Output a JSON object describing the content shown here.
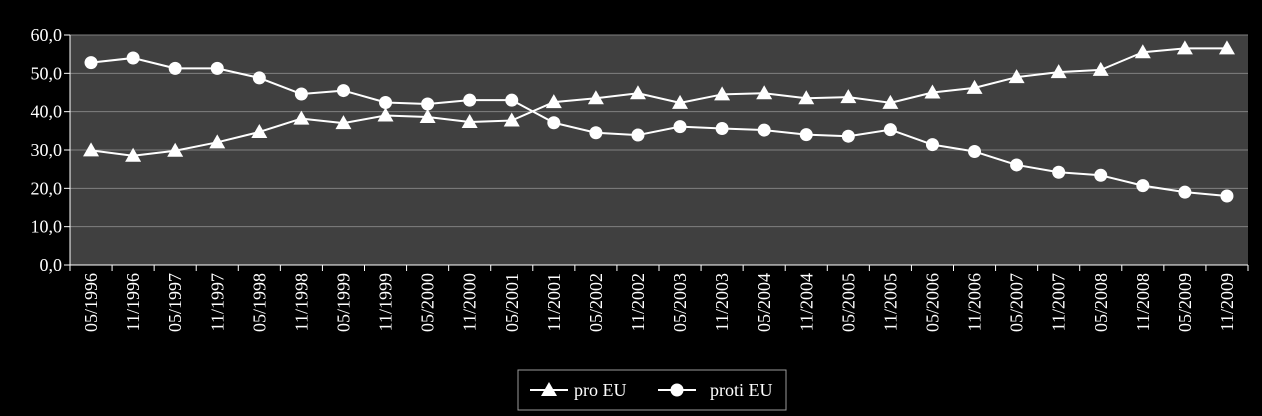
{
  "chart_data": {
    "type": "line",
    "categories": [
      "05/1996",
      "11/1996",
      "05/1997",
      "11/1997",
      "05/1998",
      "11/1998",
      "05/1999",
      "11/1999",
      "05/2000",
      "11/2000",
      "05/2001",
      "11/2001",
      "05/2002",
      "11/2002",
      "05/2003",
      "11/2003",
      "05/2004",
      "11/2004",
      "05/2005",
      "11/2005",
      "05/2006",
      "11/2006",
      "05/2007",
      "11/2007",
      "05/2008",
      "11/2008",
      "05/2009",
      "11/2009"
    ],
    "series": [
      {
        "name": "pro EU",
        "marker": "triangle",
        "values": [
          29.9,
          28.5,
          29.8,
          32.0,
          34.7,
          38.2,
          37.0,
          39.0,
          38.6,
          37.3,
          37.7,
          42.5,
          43.5,
          44.8,
          42.3,
          44.5,
          44.8,
          43.5,
          43.8,
          42.3,
          45.0,
          46.2,
          49.0,
          50.3,
          50.9,
          55.5,
          56.5,
          56.5
        ]
      },
      {
        "name": "proti EU",
        "marker": "circle",
        "values": [
          52.8,
          54.0,
          51.3,
          51.3,
          48.8,
          44.6,
          45.5,
          42.4,
          42.0,
          43.0,
          43.0,
          37.1,
          34.5,
          33.9,
          36.1,
          35.6,
          35.2,
          34.0,
          33.6,
          35.3,
          31.4,
          29.6,
          26.1,
          24.2,
          23.4,
          20.7,
          19.0,
          18.0
        ]
      }
    ],
    "yticks": [
      "0,0",
      "10,0",
      "20,0",
      "30,0",
      "40,0",
      "50,0",
      "60,0"
    ],
    "ylim": [
      0,
      60
    ],
    "grid": true,
    "legend": "bottom-center",
    "colors": {
      "background": "#000000",
      "plot_area": "#404040",
      "gridline": "#808080",
      "series": "#ffffff"
    }
  }
}
